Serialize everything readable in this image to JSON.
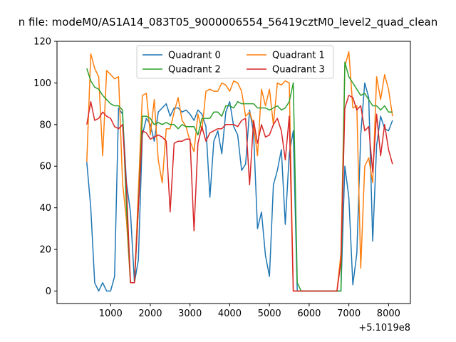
{
  "chart_data": {
    "type": "line",
    "title": "n file: modeM0/AS1A14_083T05_9000006554_56419cztM0_level2_quad_clean",
    "offset_label": "+5.1019e8",
    "xlabel": "",
    "ylabel": "",
    "xlim": [
      -350,
      8550
    ],
    "ylim": [
      -6,
      120
    ],
    "xticks": [
      1000,
      2000,
      3000,
      4000,
      5000,
      6000,
      7000,
      8000
    ],
    "yticks": [
      0,
      20,
      40,
      60,
      80,
      100,
      120
    ],
    "legend": {
      "placement": "top-center",
      "columns": 2
    },
    "grid": false,
    "series": [
      {
        "name": "Quadrant 0",
        "color": "#1f77b4",
        "x": [
          400,
          500,
          600,
          700,
          800,
          900,
          1000,
          1100,
          1200,
          1300,
          1400,
          1500,
          1600,
          1700,
          1800,
          1900,
          2000,
          2100,
          2200,
          2300,
          2400,
          2500,
          2600,
          2700,
          2800,
          2900,
          3000,
          3100,
          3200,
          3300,
          3400,
          3500,
          3600,
          3700,
          3800,
          3900,
          4000,
          4100,
          4200,
          4300,
          4400,
          4500,
          4600,
          4700,
          4800,
          4900,
          5000,
          5100,
          5200,
          5300,
          5400,
          5500,
          5600,
          5700,
          5800,
          5900,
          6000,
          6100,
          6200,
          6300,
          6400,
          6500,
          6600,
          6700,
          6800,
          6900,
          7000,
          7100,
          7200,
          7300,
          7400,
          7500,
          7600,
          7700,
          7800,
          7900,
          8000,
          8100
        ],
        "y": [
          62,
          40,
          4,
          0,
          4,
          0,
          0,
          7,
          88,
          85,
          52,
          38,
          4,
          15,
          75,
          83,
          80,
          72,
          86,
          88,
          90,
          84,
          88,
          88,
          86,
          87,
          85,
          82,
          87,
          85,
          79,
          45,
          72,
          77,
          66,
          86,
          91,
          79,
          75,
          58,
          61,
          87,
          76,
          30,
          38,
          17,
          7,
          51,
          58,
          68,
          32,
          66,
          77,
          0,
          0,
          0,
          0,
          0,
          0,
          0,
          0,
          0,
          0,
          0,
          0,
          60,
          45,
          3,
          18,
          75,
          100,
          93,
          24,
          70,
          84,
          78,
          77,
          82
        ]
      },
      {
        "name": "Quadrant 1",
        "color": "#ff7f0e",
        "x": [
          400,
          500,
          600,
          700,
          800,
          900,
          1000,
          1100,
          1200,
          1300,
          1400,
          1500,
          1600,
          1700,
          1800,
          1900,
          2000,
          2100,
          2200,
          2300,
          2400,
          2500,
          2600,
          2700,
          2800,
          2900,
          3000,
          3100,
          3200,
          3300,
          3400,
          3500,
          3600,
          3700,
          3800,
          3900,
          4000,
          4100,
          4200,
          4300,
          4400,
          4500,
          4600,
          4700,
          4800,
          4900,
          5000,
          5100,
          5200,
          5300,
          5400,
          5500,
          5600,
          5700,
          5800,
          5900,
          6000,
          6100,
          6200,
          6300,
          6400,
          6500,
          6600,
          6700,
          6800,
          6900,
          7000,
          7100,
          7200,
          7300,
          7400,
          7500,
          7600,
          7700,
          7800,
          7900,
          8000,
          8100
        ],
        "y": [
          62,
          114,
          107,
          103,
          65,
          106,
          104,
          102,
          103,
          52,
          34,
          4,
          4,
          48,
          94,
          95,
          75,
          92,
          63,
          52,
          78,
          78,
          86,
          93,
          82,
          79,
          72,
          67,
          85,
          77,
          96,
          97,
          96,
          96,
          100,
          99,
          96,
          101,
          100,
          96,
          84,
          86,
          80,
          65,
          97,
          89,
          97,
          80,
          100,
          99,
          101,
          100,
          0,
          0,
          0,
          0,
          0,
          0,
          0,
          0,
          0,
          0,
          0,
          0,
          18,
          108,
          115,
          88,
          89,
          11,
          60,
          64,
          52,
          103,
          92,
          104,
          97,
          84
        ]
      },
      {
        "name": "Quadrant 2",
        "color": "#2ca02c",
        "x": [
          400,
          500,
          600,
          700,
          800,
          900,
          1000,
          1100,
          1200,
          1300,
          1400,
          1500,
          1600,
          1700,
          1800,
          1900,
          2000,
          2100,
          2200,
          2300,
          2400,
          2500,
          2600,
          2700,
          2800,
          2900,
          3000,
          3100,
          3200,
          3300,
          3400,
          3500,
          3600,
          3700,
          3800,
          3900,
          4000,
          4100,
          4200,
          4300,
          4400,
          4500,
          4600,
          4700,
          4800,
          4900,
          5000,
          5100,
          5200,
          5300,
          5400,
          5500,
          5600,
          5700,
          5800,
          5900,
          6000,
          6100,
          6200,
          6300,
          6400,
          6500,
          6600,
          6700,
          6800,
          6900,
          7000,
          7100,
          7200,
          7300,
          7400,
          7500,
          7600,
          7700,
          7800,
          7900,
          8000,
          8100
        ],
        "y": [
          107,
          101,
          98,
          97,
          94,
          92,
          90,
          89,
          89,
          87,
          40,
          4,
          4,
          40,
          84,
          84,
          83,
          80,
          81,
          80,
          81,
          80,
          80,
          78,
          80,
          79,
          79,
          79,
          75,
          83,
          83,
          83,
          86,
          86,
          84,
          89,
          89,
          88,
          91,
          90,
          90,
          90,
          90,
          88,
          88,
          88,
          87,
          88,
          89,
          87,
          88,
          91,
          100,
          4,
          0,
          0,
          0,
          0,
          0,
          0,
          0,
          0,
          0,
          0,
          0,
          110,
          103,
          100,
          97,
          94,
          95,
          92,
          89,
          89,
          87,
          89,
          86,
          86
        ]
      },
      {
        "name": "Quadrant 3",
        "color": "#d62728",
        "x": [
          400,
          500,
          600,
          700,
          800,
          900,
          1000,
          1100,
          1200,
          1300,
          1400,
          1500,
          1600,
          1700,
          1800,
          1900,
          2000,
          2100,
          2200,
          2300,
          2400,
          2500,
          2600,
          2700,
          2800,
          2900,
          3000,
          3100,
          3200,
          3300,
          3400,
          3500,
          3600,
          3700,
          3800,
          3900,
          4000,
          4100,
          4200,
          4300,
          4400,
          4500,
          4600,
          4700,
          4800,
          4900,
          5000,
          5100,
          5200,
          5300,
          5400,
          5500,
          5600,
          5700,
          5800,
          5900,
          6000,
          6100,
          6200,
          6300,
          6400,
          6500,
          6600,
          6700,
          6800,
          6900,
          7000,
          7100,
          7200,
          7300,
          7400,
          7500,
          7600,
          7700,
          7800,
          7900,
          8000,
          8100
        ],
        "y": [
          80,
          91,
          82,
          83,
          86,
          84,
          83,
          79,
          78,
          80,
          50,
          4,
          4,
          40,
          77,
          76,
          73,
          74,
          75,
          74,
          72,
          38,
          71,
          72,
          72,
          73,
          73,
          29,
          71,
          79,
          72,
          76,
          77,
          78,
          78,
          80,
          80,
          80,
          79,
          82,
          83,
          51,
          82,
          71,
          80,
          74,
          75,
          80,
          83,
          77,
          63,
          84,
          0,
          0,
          0,
          0,
          0,
          0,
          0,
          0,
          0,
          0,
          0,
          0,
          14,
          88,
          94,
          93,
          87,
          89,
          77,
          79,
          57,
          85,
          65,
          80,
          68,
          61
        ]
      }
    ]
  }
}
